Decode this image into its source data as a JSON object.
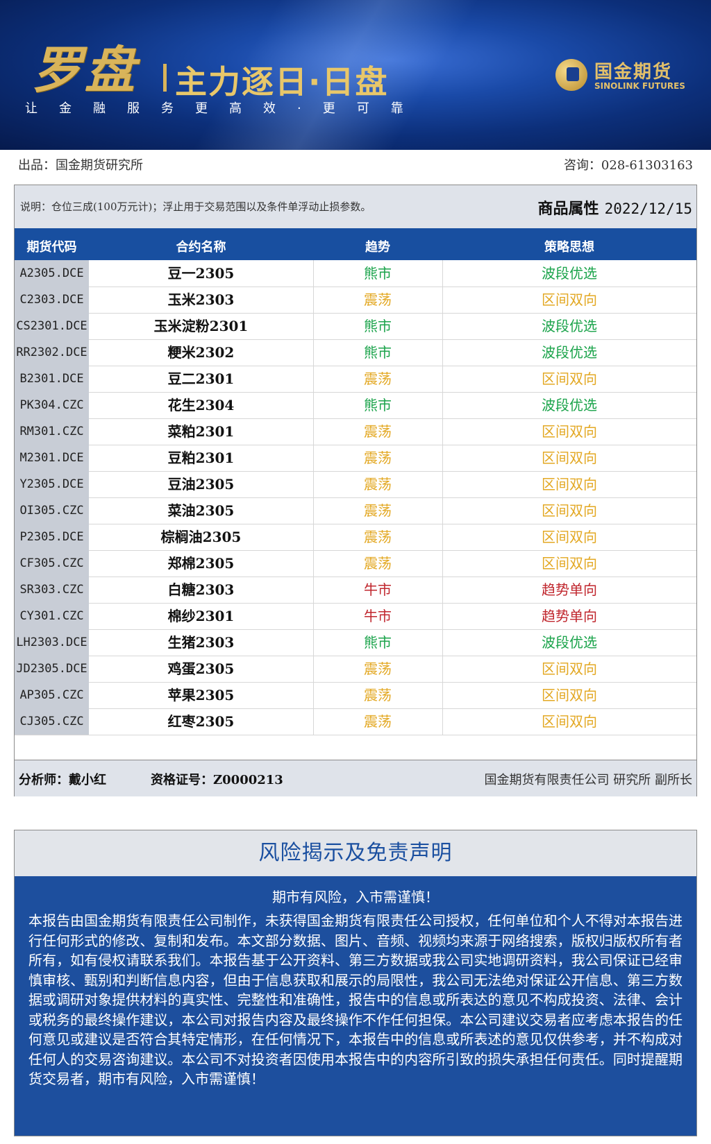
{
  "banner": {
    "logo": "罗盘",
    "subtitle": "主力逐日·日盘",
    "slogan": "让金融服务更高效·更可靠",
    "brand_cn": "国金期货",
    "brand_en": "SINOLINK FUTURES"
  },
  "info": {
    "publisher": "出品：国金期货研究所",
    "contact": "咨询：028-61303163"
  },
  "table": {
    "note": "说明：仓位三成(100万元计)；浮止用于交易范围以及条件单浮动止损参数。",
    "attr_label": "商品属性",
    "date": "2022/12/15",
    "headers": [
      "期货代码",
      "合约名称",
      "趋势",
      "策略思想"
    ],
    "colors": {
      "bear": "#1aa34a",
      "range": "#e3a823",
      "bull": "#c0262d"
    },
    "rows": [
      {
        "code": "A2305.DCE",
        "name": "豆一2305",
        "trend": "熊市",
        "strategy": "波段优选",
        "type": "bear"
      },
      {
        "code": "C2303.DCE",
        "name": "玉米2303",
        "trend": "震荡",
        "strategy": "区间双向",
        "type": "range"
      },
      {
        "code": "CS2301.DCE",
        "name": "玉米淀粉2301",
        "trend": "熊市",
        "strategy": "波段优选",
        "type": "bear"
      },
      {
        "code": "RR2302.DCE",
        "name": "粳米2302",
        "trend": "熊市",
        "strategy": "波段优选",
        "type": "bear"
      },
      {
        "code": "B2301.DCE",
        "name": "豆二2301",
        "trend": "震荡",
        "strategy": "区间双向",
        "type": "range"
      },
      {
        "code": "PK304.CZC",
        "name": "花生2304",
        "trend": "熊市",
        "strategy": "波段优选",
        "type": "bear"
      },
      {
        "code": "RM301.CZC",
        "name": "菜粕2301",
        "trend": "震荡",
        "strategy": "区间双向",
        "type": "range"
      },
      {
        "code": "M2301.DCE",
        "name": "豆粕2301",
        "trend": "震荡",
        "strategy": "区间双向",
        "type": "range"
      },
      {
        "code": "Y2305.DCE",
        "name": "豆油2305",
        "trend": "震荡",
        "strategy": "区间双向",
        "type": "range"
      },
      {
        "code": "OI305.CZC",
        "name": "菜油2305",
        "trend": "震荡",
        "strategy": "区间双向",
        "type": "range"
      },
      {
        "code": "P2305.DCE",
        "name": "棕榈油2305",
        "trend": "震荡",
        "strategy": "区间双向",
        "type": "range"
      },
      {
        "code": "CF305.CZC",
        "name": "郑棉2305",
        "trend": "震荡",
        "strategy": "区间双向",
        "type": "range"
      },
      {
        "code": "SR303.CZC",
        "name": "白糖2303",
        "trend": "牛市",
        "strategy": "趋势单向",
        "type": "bull"
      },
      {
        "code": "CY301.CZC",
        "name": "棉纱2301",
        "trend": "牛市",
        "strategy": "趋势单向",
        "type": "bull"
      },
      {
        "code": "LH2303.DCE",
        "name": "生猪2303",
        "trend": "熊市",
        "strategy": "波段优选",
        "type": "bear"
      },
      {
        "code": "JD2305.DCE",
        "name": "鸡蛋2305",
        "trend": "震荡",
        "strategy": "区间双向",
        "type": "range"
      },
      {
        "code": "AP305.CZC",
        "name": "苹果2305",
        "trend": "震荡",
        "strategy": "区间双向",
        "type": "range"
      },
      {
        "code": "CJ305.CZC",
        "name": "红枣2305",
        "trend": "震荡",
        "strategy": "区间双向",
        "type": "range"
      }
    ],
    "analyst": "分析师：戴小红",
    "cert": "资格证号：Z0000213",
    "company": "国金期货有限责任公司 研究所 副所长"
  },
  "risk": {
    "title": "风险揭示及免责声明",
    "lead": "期市有风险，入市需谨慎！",
    "body": "本报告由国金期货有限责任公司制作，未获得国金期货有限责任公司授权，任何单位和个人不得对本报告进行任何形式的修改、复制和发布。本文部分数据、图片、音频、视频均来源于网络搜索，版权归版权所有者所有，如有侵权请联系我们。本报告基于公开资料、第三方数据或我公司实地调研资料，我公司保证已经审慎审核、甄别和判断信息内容，但由于信息获取和展示的局限性，我公司无法绝对保证公开信息、第三方数据或调研对象提供材料的真实性、完整性和准确性，报告中的信息或所表达的意见不构成投资、法律、会计或税务的最终操作建议，本公司对报告内容及最终操作不作任何担保。本公司建议交易者应考虑本报告的任何意见或建议是否符合其特定情形，在任何情况下，本报告中的信息或所表述的意见仅供参考，并不构成对任何人的交易咨询建议。本公司不对投资者因使用本报告中的内容所引致的损失承担任何责任。同时提醒期货交易者，期市有风险，入市需谨慎！"
  }
}
